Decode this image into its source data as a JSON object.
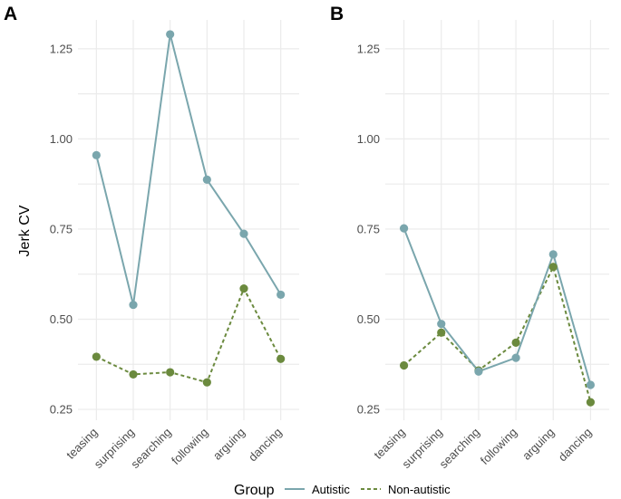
{
  "chart_data": [
    {
      "type": "line",
      "panel_label": "A",
      "ylabel": "Jerk CV",
      "xlabel": "",
      "ylim": [
        0.22,
        1.33
      ],
      "yticks": [
        0.25,
        0.5,
        0.75,
        1.0,
        1.25
      ],
      "ytick_labels": [
        "0.25",
        "0.50",
        "0.75",
        "1.00",
        "1.25"
      ],
      "categories": [
        "teasing",
        "surprising",
        "searching",
        "following",
        "arguing",
        "dancing"
      ],
      "series": [
        {
          "name": "Autistic",
          "color": "#7aa6ad",
          "dash": "solid",
          "values": [
            0.955,
            0.54,
            1.29,
            0.887,
            0.737,
            0.568
          ]
        },
        {
          "name": "Non-autistic",
          "color": "#6b8a3e",
          "dash": "dashed",
          "values": [
            0.396,
            0.347,
            0.353,
            0.325,
            0.585,
            0.39
          ]
        }
      ]
    },
    {
      "type": "line",
      "panel_label": "B",
      "ylabel": "",
      "xlabel": "",
      "ylim": [
        0.22,
        1.33
      ],
      "yticks": [
        0.25,
        0.5,
        0.75,
        1.0,
        1.25
      ],
      "ytick_labels": [
        "0.25",
        "0.50",
        "0.75",
        "1.00",
        "1.25"
      ],
      "categories": [
        "teasing",
        "surprising",
        "searching",
        "following",
        "arguing",
        "dancing"
      ],
      "series": [
        {
          "name": "Autistic",
          "color": "#7aa6ad",
          "dash": "solid",
          "values": [
            0.752,
            0.487,
            0.355,
            0.393,
            0.68,
            0.318
          ]
        },
        {
          "name": "Non-autistic",
          "color": "#6b8a3e",
          "dash": "dashed",
          "values": [
            0.372,
            0.463,
            0.358,
            0.435,
            0.645,
            0.27
          ]
        }
      ]
    }
  ],
  "legend": {
    "title": "Group",
    "position": "bottom",
    "items": [
      {
        "label": "Autistic",
        "color": "#7aa6ad",
        "dash": "solid"
      },
      {
        "label": "Non-autistic",
        "color": "#6b8a3e",
        "dash": "dashed"
      }
    ]
  }
}
